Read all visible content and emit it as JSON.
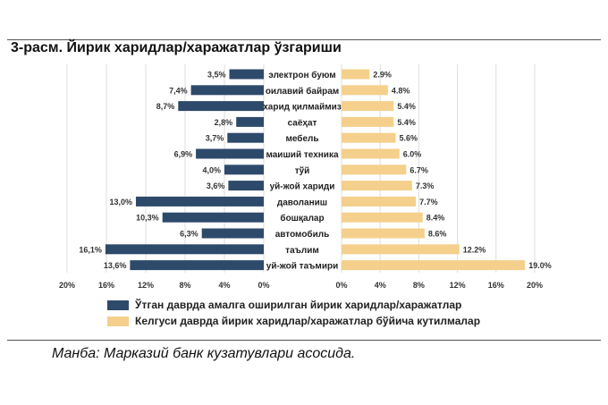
{
  "chart_data": {
    "type": "bar",
    "orientation": "horizontal",
    "title": "3-расм. Йирик харидлар/харажатлар ўзгариши",
    "categories": [
      "электрон буюм",
      "оилавий байрам",
      "харид қилмаймиз",
      "саёҳат",
      "мебель",
      "маиший техника",
      "тўй",
      "уй-жой хариди",
      "даволаниш",
      "бошқалар",
      "автомобиль",
      "таълим",
      "уй-жой таъмири"
    ],
    "series": [
      {
        "name": "Ўтган даврда амалга оширилган йирик харидлар/харажатлар",
        "color": "#2e4a6b",
        "side": "left",
        "values": [
          3.5,
          7.4,
          8.7,
          2.8,
          3.7,
          6.9,
          4.0,
          3.6,
          13.0,
          10.3,
          6.3,
          16.1,
          13.6
        ],
        "labels": [
          "3,5%",
          "7,4%",
          "8,7%",
          "2,8%",
          "3,7%",
          "6,9%",
          "4,0%",
          "3,6%",
          "13,0%",
          "10,3%",
          "6,3%",
          "16,1%",
          "13,6%"
        ]
      },
      {
        "name": "Келгуси даврда йирик харидлар/харажатлар бўйича кутилмалар",
        "color": "#f5d08c",
        "side": "right",
        "values": [
          2.9,
          4.8,
          5.4,
          5.4,
          5.6,
          6.0,
          6.7,
          7.3,
          7.7,
          8.4,
          8.6,
          12.2,
          19.0
        ],
        "labels": [
          "2.9%",
          "4.8%",
          "5.4%",
          "5.4%",
          "5.6%",
          "6.0%",
          "6.7%",
          "7.3%",
          "7.7%",
          "8.4%",
          "8.6%",
          "12.2%",
          "19.0%"
        ]
      }
    ],
    "left_ticks": [
      "20%",
      "16%",
      "12%",
      "8%",
      "4%",
      "0%"
    ],
    "right_ticks": [
      "0%",
      "4%",
      "8%",
      "12%",
      "16%",
      "20%"
    ],
    "xlim": [
      0,
      20
    ],
    "grid": true,
    "legend": "bottom"
  },
  "source": "Манба: Марказий банк кузатувлари асосида."
}
